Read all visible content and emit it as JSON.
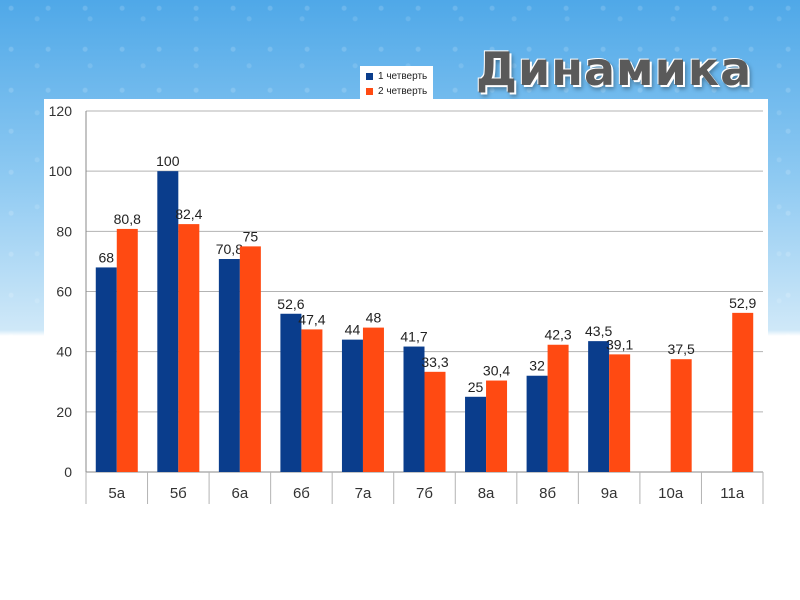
{
  "title": "Динамика",
  "colors": {
    "series1": "#0a3d8c",
    "series2": "#ff4a12",
    "grid": "#b3b3b3"
  },
  "chart_data": {
    "type": "bar",
    "categories": [
      "5а",
      "5б",
      "6а",
      "6б",
      "7а",
      "7б",
      "8а",
      "8б",
      "9а",
      "10а",
      "11а"
    ],
    "series": [
      {
        "name": "1 четверть",
        "values": [
          68,
          100,
          70.8,
          52.6,
          44,
          41.7,
          25,
          32,
          43.5,
          null,
          null
        ],
        "labels": [
          "68",
          "100",
          "70,8",
          "52,6",
          "44",
          "41,7",
          "25",
          "32",
          "43,5",
          "",
          ""
        ]
      },
      {
        "name": "2 четверть",
        "values": [
          80.8,
          82.4,
          75,
          47.4,
          48,
          33.3,
          30.4,
          42.3,
          39.1,
          37.5,
          52.9
        ],
        "labels": [
          "80,8",
          "82,4",
          "75",
          "47,4",
          "48",
          "33,3",
          "30,4",
          "42,3",
          "39,1",
          "37,5",
          "52,9"
        ]
      }
    ],
    "yticks": [
      "0",
      "20",
      "40",
      "60",
      "80",
      "100",
      "120"
    ],
    "ylim": [
      0,
      120
    ],
    "grid": true,
    "legend_position": "top"
  }
}
